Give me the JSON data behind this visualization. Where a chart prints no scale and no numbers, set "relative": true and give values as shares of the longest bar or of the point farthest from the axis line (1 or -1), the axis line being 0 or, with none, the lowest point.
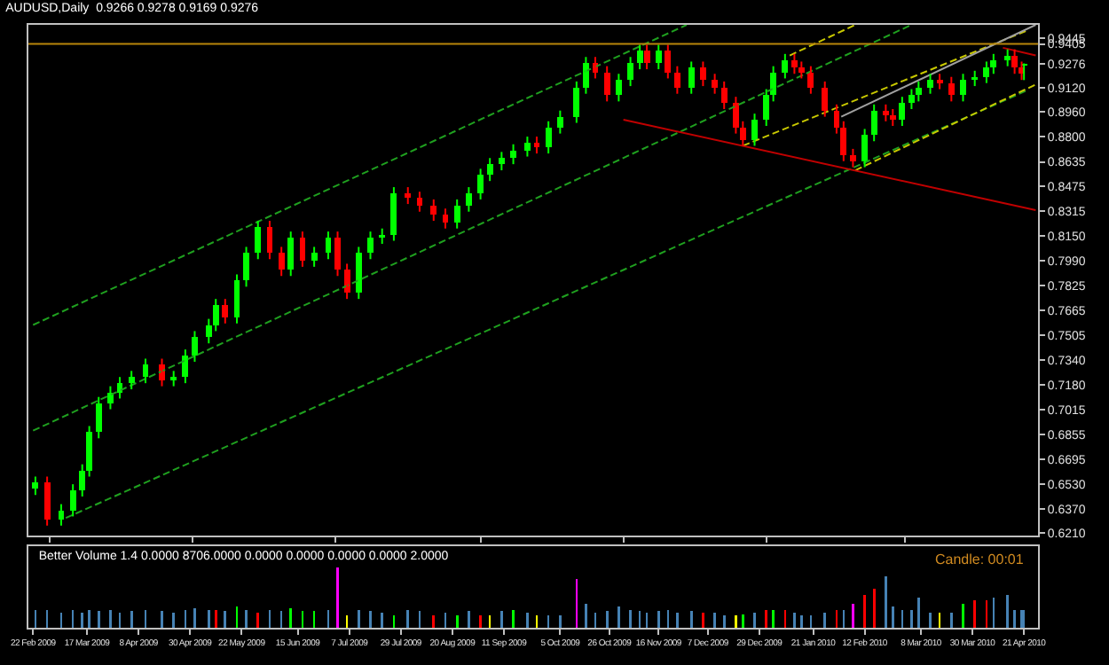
{
  "chart_data": [
    {
      "type": "candlestick",
      "title": "AUDUSD,Daily  0.9266 0.9278 0.9169 0.9276",
      "x": [
        "2009-02-23",
        "2009-02-28",
        "2009-03-06",
        "2009-03-11",
        "2009-03-15",
        "2009-03-18",
        "2009-03-22",
        "2009-03-27",
        "2009-03-31",
        "2009-04-05",
        "2009-04-11",
        "2009-04-18",
        "2009-04-23",
        "2009-04-28",
        "2009-05-02",
        "2009-05-08",
        "2009-05-11",
        "2009-05-15",
        "2009-05-20",
        "2009-05-24",
        "2009-05-29",
        "2009-06-03",
        "2009-06-08",
        "2009-06-12",
        "2009-06-17",
        "2009-06-22",
        "2009-06-28",
        "2009-07-02",
        "2009-07-06",
        "2009-07-11",
        "2009-07-16",
        "2009-07-21",
        "2009-07-26",
        "2009-08-01",
        "2009-08-06",
        "2009-08-12",
        "2009-08-17",
        "2009-08-22",
        "2009-08-27",
        "2009-09-01",
        "2009-09-05",
        "2009-09-10",
        "2009-09-15",
        "2009-09-21",
        "2009-09-25",
        "2009-09-30",
        "2009-10-05",
        "2009-10-12",
        "2009-10-16",
        "2009-10-20",
        "2009-10-25",
        "2009-10-30",
        "2009-11-04",
        "2009-11-08",
        "2009-11-11",
        "2009-11-16",
        "2009-11-20",
        "2009-11-24",
        "2009-11-30",
        "2009-12-05",
        "2009-12-10",
        "2009-12-14",
        "2009-12-19",
        "2009-12-22",
        "2009-12-27",
        "2010-01-01",
        "2010-01-04",
        "2010-01-09",
        "2010-01-13",
        "2010-01-16",
        "2010-01-20",
        "2010-01-26",
        "2010-01-31",
        "2010-02-03",
        "2010-02-07",
        "2010-02-12",
        "2010-02-16",
        "2010-02-21",
        "2010-02-24",
        "2010-02-28",
        "2010-03-04",
        "2010-03-07",
        "2010-03-12",
        "2010-03-16",
        "2010-03-21",
        "2010-03-26",
        "2010-03-31",
        "2010-04-05",
        "2010-04-08",
        "2010-04-14",
        "2010-04-17",
        "2010-04-20",
        "2010-04-21"
      ],
      "ohlc": [
        [
          0.65,
          0.658,
          0.646,
          0.654
        ],
        [
          0.654,
          0.658,
          0.626,
          0.63
        ],
        [
          0.63,
          0.64,
          0.626,
          0.636
        ],
        [
          0.636,
          0.653,
          0.632,
          0.649
        ],
        [
          0.649,
          0.666,
          0.645,
          0.662
        ],
        [
          0.662,
          0.691,
          0.658,
          0.687
        ],
        [
          0.687,
          0.71,
          0.683,
          0.706
        ],
        [
          0.706,
          0.717,
          0.702,
          0.713
        ],
        [
          0.713,
          0.723,
          0.709,
          0.719
        ],
        [
          0.719,
          0.727,
          0.715,
          0.723
        ],
        [
          0.723,
          0.735,
          0.719,
          0.731
        ],
        [
          0.731,
          0.735,
          0.717,
          0.721
        ],
        [
          0.721,
          0.727,
          0.717,
          0.723
        ],
        [
          0.723,
          0.741,
          0.719,
          0.737
        ],
        [
          0.737,
          0.753,
          0.733,
          0.749
        ],
        [
          0.749,
          0.761,
          0.745,
          0.757
        ],
        [
          0.757,
          0.774,
          0.753,
          0.77
        ],
        [
          0.77,
          0.774,
          0.758,
          0.762
        ],
        [
          0.762,
          0.79,
          0.758,
          0.786
        ],
        [
          0.786,
          0.808,
          0.782,
          0.804
        ],
        [
          0.804,
          0.825,
          0.8,
          0.821
        ],
        [
          0.821,
          0.825,
          0.8,
          0.804
        ],
        [
          0.804,
          0.808,
          0.789,
          0.793
        ],
        [
          0.793,
          0.818,
          0.789,
          0.814
        ],
        [
          0.814,
          0.818,
          0.795,
          0.799
        ],
        [
          0.799,
          0.808,
          0.795,
          0.804
        ],
        [
          0.804,
          0.818,
          0.8,
          0.814
        ],
        [
          0.814,
          0.818,
          0.789,
          0.793
        ],
        [
          0.793,
          0.797,
          0.774,
          0.778
        ],
        [
          0.778,
          0.808,
          0.774,
          0.804
        ],
        [
          0.804,
          0.818,
          0.8,
          0.814
        ],
        [
          0.814,
          0.82,
          0.81,
          0.816
        ],
        [
          0.816,
          0.847,
          0.812,
          0.843
        ],
        [
          0.843,
          0.847,
          0.836,
          0.84
        ],
        [
          0.84,
          0.844,
          0.831,
          0.835
        ],
        [
          0.835,
          0.839,
          0.825,
          0.829
        ],
        [
          0.829,
          0.833,
          0.82,
          0.824
        ],
        [
          0.824,
          0.839,
          0.82,
          0.835
        ],
        [
          0.835,
          0.847,
          0.831,
          0.843
        ],
        [
          0.843,
          0.859,
          0.839,
          0.855
        ],
        [
          0.855,
          0.866,
          0.851,
          0.862
        ],
        [
          0.862,
          0.87,
          0.858,
          0.866
        ],
        [
          0.866,
          0.875,
          0.862,
          0.871
        ],
        [
          0.871,
          0.88,
          0.867,
          0.876
        ],
        [
          0.876,
          0.88,
          0.869,
          0.873
        ],
        [
          0.873,
          0.89,
          0.869,
          0.886
        ],
        [
          0.886,
          0.897,
          0.882,
          0.893
        ],
        [
          0.893,
          0.916,
          0.889,
          0.912
        ],
        [
          0.912,
          0.932,
          0.908,
          0.928
        ],
        [
          0.928,
          0.932,
          0.918,
          0.922
        ],
        [
          0.922,
          0.926,
          0.903,
          0.907
        ],
        [
          0.907,
          0.921,
          0.903,
          0.917
        ],
        [
          0.917,
          0.932,
          0.913,
          0.928
        ],
        [
          0.928,
          0.94,
          0.924,
          0.936
        ],
        [
          0.936,
          0.94,
          0.924,
          0.928
        ],
        [
          0.928,
          0.94,
          0.924,
          0.936
        ],
        [
          0.936,
          0.94,
          0.918,
          0.922
        ],
        [
          0.922,
          0.926,
          0.908,
          0.912
        ],
        [
          0.912,
          0.929,
          0.908,
          0.925
        ],
        [
          0.925,
          0.929,
          0.913,
          0.917
        ],
        [
          0.917,
          0.921,
          0.908,
          0.912
        ],
        [
          0.912,
          0.916,
          0.898,
          0.902
        ],
        [
          0.902,
          0.906,
          0.882,
          0.886
        ],
        [
          0.886,
          0.89,
          0.874,
          0.878
        ],
        [
          0.878,
          0.895,
          0.874,
          0.891
        ],
        [
          0.891,
          0.911,
          0.887,
          0.907
        ],
        [
          0.907,
          0.926,
          0.903,
          0.922
        ],
        [
          0.922,
          0.934,
          0.918,
          0.93
        ],
        [
          0.93,
          0.934,
          0.921,
          0.925
        ],
        [
          0.925,
          0.929,
          0.918,
          0.922
        ],
        [
          0.922,
          0.926,
          0.908,
          0.912
        ],
        [
          0.912,
          0.916,
          0.893,
          0.897
        ],
        [
          0.897,
          0.901,
          0.882,
          0.886
        ],
        [
          0.886,
          0.89,
          0.864,
          0.868
        ],
        [
          0.868,
          0.872,
          0.86,
          0.864
        ],
        [
          0.864,
          0.885,
          0.86,
          0.881
        ],
        [
          0.881,
          0.901,
          0.877,
          0.897
        ],
        [
          0.897,
          0.901,
          0.89,
          0.894
        ],
        [
          0.894,
          0.898,
          0.887,
          0.891
        ],
        [
          0.891,
          0.906,
          0.887,
          0.902
        ],
        [
          0.902,
          0.911,
          0.898,
          0.907
        ],
        [
          0.907,
          0.916,
          0.903,
          0.912
        ],
        [
          0.912,
          0.921,
          0.908,
          0.917
        ],
        [
          0.917,
          0.921,
          0.911,
          0.915
        ],
        [
          0.915,
          0.919,
          0.903,
          0.907
        ],
        [
          0.907,
          0.921,
          0.903,
          0.917
        ],
        [
          0.917,
          0.923,
          0.913,
          0.919
        ],
        [
          0.919,
          0.929,
          0.915,
          0.925
        ],
        [
          0.925,
          0.934,
          0.921,
          0.93
        ],
        [
          0.93,
          0.937,
          0.926,
          0.933
        ],
        [
          0.933,
          0.937,
          0.921,
          0.925
        ],
        [
          0.925,
          0.929,
          0.917,
          0.921
        ],
        [
          0.9266,
          0.9278,
          0.9169,
          0.9276
        ]
      ],
      "colors": [
        "#00ff00",
        "#ff0000",
        "#00ff00",
        "#00ff00",
        "#00ff00",
        "#00ff00",
        "#00ff00",
        "#00ff00",
        "#00ff00",
        "#00ff00",
        "#00ff00",
        "#ff0000",
        "#00ff00",
        "#00ff00",
        "#00ff00",
        "#00ff00",
        "#00ff00",
        "#ff0000",
        "#00ff00",
        "#00ff00",
        "#00ff00",
        "#ff0000",
        "#ff0000",
        "#00ff00",
        "#ff0000",
        "#00ff00",
        "#00ff00",
        "#ff0000",
        "#ff0000",
        "#00ff00",
        "#00ff00",
        "#00ff00",
        "#00ff00",
        "#ff0000",
        "#ff0000",
        "#ff0000",
        "#ff0000",
        "#00ff00",
        "#00ff00",
        "#00ff00",
        "#00ff00",
        "#00ff00",
        "#00ff00",
        "#00ff00",
        "#ff0000",
        "#00ff00",
        "#00ff00",
        "#00ff00",
        "#00ff00",
        "#ff0000",
        "#ff0000",
        "#00ff00",
        "#00ff00",
        "#00ff00",
        "#ff0000",
        "#00ff00",
        "#ff0000",
        "#ff0000",
        "#00ff00",
        "#ff0000",
        "#ff0000",
        "#ff0000",
        "#ff0000",
        "#ff0000",
        "#00ff00",
        "#00ff00",
        "#00ff00",
        "#00ff00",
        "#ff0000",
        "#ff0000",
        "#ff0000",
        "#ff0000",
        "#ff0000",
        "#ff0000",
        "#ff0000",
        "#00ff00",
        "#00ff00",
        "#ff0000",
        "#ff0000",
        "#00ff00",
        "#00ff00",
        "#00ff00",
        "#00ff00",
        "#ff0000",
        "#ff0000",
        "#00ff00",
        "#00ff00",
        "#00ff00",
        "#00ff00",
        "#00ff00",
        "#ff0000",
        "#ff0000",
        "#00ff00"
      ],
      "series": [
        {
          "type": "line",
          "color": "#1fa01f",
          "line_style": "dashed",
          "x": [
            "2009-02-22",
            "2009-11-28"
          ],
          "values": [
            0.757,
            0.953
          ]
        },
        {
          "type": "line",
          "color": "#1fa01f",
          "line_style": "dashed",
          "x": [
            "2009-02-22",
            "2010-03-04"
          ],
          "values": [
            0.688,
            0.953
          ]
        },
        {
          "type": "line",
          "color": "#1fa01f",
          "line_style": "dashed",
          "x": [
            "2009-03-08",
            "2010-04-22"
          ],
          "values": [
            0.631,
            0.91
          ]
        },
        {
          "type": "line",
          "color": "#c8c800",
          "line_style": "dashed",
          "x": [
            "2010-01-11",
            "2010-02-08"
          ],
          "values": [
            0.933,
            0.953
          ]
        },
        {
          "type": "line",
          "color": "#c8c800",
          "line_style": "dashed",
          "x": [
            "2010-02-08",
            "2010-04-26"
          ],
          "values": [
            0.858,
            0.914
          ]
        },
        {
          "type": "line",
          "color": "#c8c800",
          "line_style": "dashed",
          "x": [
            "2009-12-22",
            "2010-04-22"
          ],
          "values": [
            0.874,
            0.949
          ]
        },
        {
          "type": "line",
          "color": "#a0a0a0",
          "line_style": "solid",
          "x": [
            "2010-02-02",
            "2010-04-26"
          ],
          "values": [
            0.893,
            0.953
          ]
        },
        {
          "type": "line",
          "color": "#c00000",
          "line_style": "solid",
          "x": [
            "2009-11-01",
            "2010-04-26"
          ],
          "values": [
            0.891,
            0.832
          ]
        },
        {
          "type": "line",
          "color": "#c00000",
          "line_style": "solid",
          "x": [
            "2010-04-12",
            "2010-04-26"
          ],
          "values": [
            0.938,
            0.933
          ]
        }
      ],
      "ref_lines": [
        {
          "axis": "y",
          "value": 0.9405,
          "color": "#b8860b"
        }
      ],
      "xlim": [
        "2009-02-20",
        "2010-04-27"
      ],
      "ylim": [
        0.6195,
        0.953
      ],
      "yticks": [
        {
          "value": 0.621,
          "label": "0.6210"
        },
        {
          "value": 0.637,
          "label": "0.6370"
        },
        {
          "value": 0.653,
          "label": "0.6530"
        },
        {
          "value": 0.6695,
          "label": "0.6695"
        },
        {
          "value": 0.6855,
          "label": "0.6855"
        },
        {
          "value": 0.7015,
          "label": "0.7015"
        },
        {
          "value": 0.718,
          "label": "0.7180"
        },
        {
          "value": 0.734,
          "label": "0.7340"
        },
        {
          "value": 0.7505,
          "label": "0.7505"
        },
        {
          "value": 0.7665,
          "label": "0.7665"
        },
        {
          "value": 0.7825,
          "label": "0.7825"
        },
        {
          "value": 0.799,
          "label": "0.7990"
        },
        {
          "value": 0.815,
          "label": "0.8150"
        },
        {
          "value": 0.8315,
          "label": "0.8315"
        },
        {
          "value": 0.8475,
          "label": "0.8475"
        },
        {
          "value": 0.8635,
          "label": "0.8635"
        },
        {
          "value": 0.88,
          "label": "0.8800"
        },
        {
          "value": 0.896,
          "label": "0.8960"
        },
        {
          "value": 0.912,
          "label": "0.9120"
        },
        {
          "value": 0.9276,
          "label": "0.9276"
        },
        {
          "value": 0.9405,
          "label": "0.9405"
        },
        {
          "value": 0.9445,
          "label": "0.9445"
        }
      ],
      "tick_labels": "y"
    },
    {
      "type": "bar",
      "title": "Better Volume 1.4 0.0000 8706.0000 0.0000 0.0000 0.0000 0.0000 2.0000",
      "annotations": [
        "Candle: 00:01"
      ],
      "relative": true,
      "x": [
        "2009-02-23",
        "2009-02-28",
        "2009-03-06",
        "2009-03-11",
        "2009-03-15",
        "2009-03-18",
        "2009-03-22",
        "2009-03-27",
        "2009-03-31",
        "2009-04-05",
        "2009-04-11",
        "2009-04-18",
        "2009-04-23",
        "2009-04-28",
        "2009-05-02",
        "2009-05-08",
        "2009-05-11",
        "2009-05-15",
        "2009-05-20",
        "2009-05-24",
        "2009-05-29",
        "2009-06-03",
        "2009-06-08",
        "2009-06-12",
        "2009-06-17",
        "2009-06-22",
        "2009-06-28",
        "2009-07-02",
        "2009-07-06",
        "2009-07-11",
        "2009-07-16",
        "2009-07-21",
        "2009-07-26",
        "2009-08-01",
        "2009-08-06",
        "2009-08-12",
        "2009-08-17",
        "2009-08-22",
        "2009-08-27",
        "2009-09-01",
        "2009-09-05",
        "2009-09-10",
        "2009-09-15",
        "2009-09-21",
        "2009-09-25",
        "2009-09-30",
        "2009-10-05",
        "2009-10-12",
        "2009-10-16",
        "2009-10-20",
        "2009-10-25",
        "2009-10-30",
        "2009-11-04",
        "2009-11-08",
        "2009-11-11",
        "2009-11-16",
        "2009-11-20",
        "2009-11-24",
        "2009-11-30",
        "2009-12-05",
        "2009-12-10",
        "2009-12-14",
        "2009-12-19",
        "2009-12-22",
        "2009-12-27",
        "2010-01-01",
        "2010-01-04",
        "2010-01-09",
        "2010-01-13",
        "2010-01-16",
        "2010-01-20",
        "2010-01-26",
        "2010-01-31",
        "2010-02-03",
        "2010-02-07",
        "2010-02-12",
        "2010-02-16",
        "2010-02-21",
        "2010-02-24",
        "2010-02-28",
        "2010-03-04",
        "2010-03-07",
        "2010-03-12",
        "2010-03-16",
        "2010-03-21",
        "2010-03-26",
        "2010-03-31",
        "2010-04-05",
        "2010-04-08",
        "2010-04-14",
        "2010-04-17",
        "2010-04-20",
        "2010-04-21"
      ],
      "values": [
        0.3,
        0.3,
        0.25,
        0.3,
        0.25,
        0.3,
        0.28,
        0.3,
        0.25,
        0.28,
        0.3,
        0.28,
        0.25,
        0.3,
        0.32,
        0.3,
        0.3,
        0.28,
        0.35,
        0.3,
        0.25,
        0.3,
        0.28,
        0.32,
        0.28,
        0.28,
        0.3,
        1.0,
        0.2,
        0.3,
        0.28,
        0.25,
        0.2,
        0.3,
        0.28,
        0.2,
        0.25,
        0.2,
        0.28,
        0.2,
        0.2,
        0.28,
        0.3,
        0.25,
        0.2,
        0.2,
        0.2,
        0.8,
        0.4,
        0.25,
        0.28,
        0.35,
        0.3,
        0.28,
        0.25,
        0.28,
        0.3,
        0.25,
        0.28,
        0.25,
        0.25,
        0.2,
        0.2,
        0.22,
        0.25,
        0.3,
        0.3,
        0.3,
        0.25,
        0.2,
        0.2,
        0.25,
        0.3,
        0.3,
        0.4,
        0.55,
        0.65,
        0.85,
        0.35,
        0.3,
        0.3,
        0.5,
        0.25,
        0.25,
        0.25,
        0.4,
        0.45,
        0.45,
        0.5,
        0.55,
        0.3,
        0.3,
        0.3
      ],
      "colors": [
        "#4682b4",
        "#4682b4",
        "#4682b4",
        "#4682b4",
        "#4682b4",
        "#4682b4",
        "#4682b4",
        "#4682b4",
        "#4682b4",
        "#4682b4",
        "#4682b4",
        "#4682b4",
        "#4682b4",
        "#4682b4",
        "#4682b4",
        "#4682b4",
        "#ff0000",
        "#4682b4",
        "#00ff00",
        "#4682b4",
        "#ff0000",
        "#4682b4",
        "#4682b4",
        "#00ff00",
        "#00ff00",
        "#00ff00",
        "#4682b4",
        "#ff00ff",
        "#ffff00",
        "#4682b4",
        "#4682b4",
        "#4682b4",
        "#00ff00",
        "#4682b4",
        "#4682b4",
        "#ff0000",
        "#4682b4",
        "#00ff00",
        "#4682b4",
        "#ff0000",
        "#ffff00",
        "#4682b4",
        "#00ff00",
        "#4682b4",
        "#ffff00",
        "#4682b4",
        "#4682b4",
        "#ff00ff",
        "#4682b4",
        "#4682b4",
        "#4682b4",
        "#4682b4",
        "#4682b4",
        "#4682b4",
        "#4682b4",
        "#4682b4",
        "#4682b4",
        "#4682b4",
        "#4682b4",
        "#ff0000",
        "#4682b4",
        "#4682b4",
        "#ffff00",
        "#00ff00",
        "#4682b4",
        "#ff0000",
        "#00ff00",
        "#ff0000",
        "#4682b4",
        "#4682b4",
        "#4682b4",
        "#4682b4",
        "#ff0000",
        "#4682b4",
        "#ff00ff",
        "#ff0000",
        "#ff0000",
        "#4682b4",
        "#4682b4",
        "#4682b4",
        "#4682b4",
        "#4682b4",
        "#4682b4",
        "#ffff00",
        "#4682b4",
        "#00ff00",
        "#ff0000",
        "#ff0000",
        "#4682b4",
        "#4682b4",
        "#4682b4",
        "#4682b4",
        "#4682b4"
      ],
      "xlim": [
        "2009-02-20",
        "2010-04-27"
      ],
      "xticks": [
        {
          "value": "2009-02-22",
          "label": "22 Feb 2009"
        },
        {
          "value": "2009-03-17",
          "label": "17 Mar 2009"
        },
        {
          "value": "2009-04-08",
          "label": "8 Apr 2009"
        },
        {
          "value": "2009-04-30",
          "label": "30 Apr 2009"
        },
        {
          "value": "2009-05-22",
          "label": "22 May 2009"
        },
        {
          "value": "2009-06-15",
          "label": "15 Jun 2009"
        },
        {
          "value": "2009-07-07",
          "label": "7 Jul 2009"
        },
        {
          "value": "2009-07-29",
          "label": "29 Jul 2009"
        },
        {
          "value": "2009-08-20",
          "label": "20 Aug 2009"
        },
        {
          "value": "2009-09-11",
          "label": "11 Sep 2009"
        },
        {
          "value": "2009-10-05",
          "label": "5 Oct 2009"
        },
        {
          "value": "2009-10-26",
          "label": "26 Oct 2009"
        },
        {
          "value": "2009-11-16",
          "label": "16 Nov 2009"
        },
        {
          "value": "2009-12-07",
          "label": "7 Dec 2009"
        },
        {
          "value": "2009-12-29",
          "label": "29 Dec 2009"
        },
        {
          "value": "2010-01-21",
          "label": "21 Jan 2010"
        },
        {
          "value": "2010-02-12",
          "label": "12 Feb 2010"
        },
        {
          "value": "2010-03-08",
          "label": "8 Mar 2010"
        },
        {
          "value": "2010-03-30",
          "label": "30 Mar 2010"
        },
        {
          "value": "2010-04-21",
          "label": "21 Apr 2010"
        }
      ],
      "tick_labels": "x"
    }
  ]
}
